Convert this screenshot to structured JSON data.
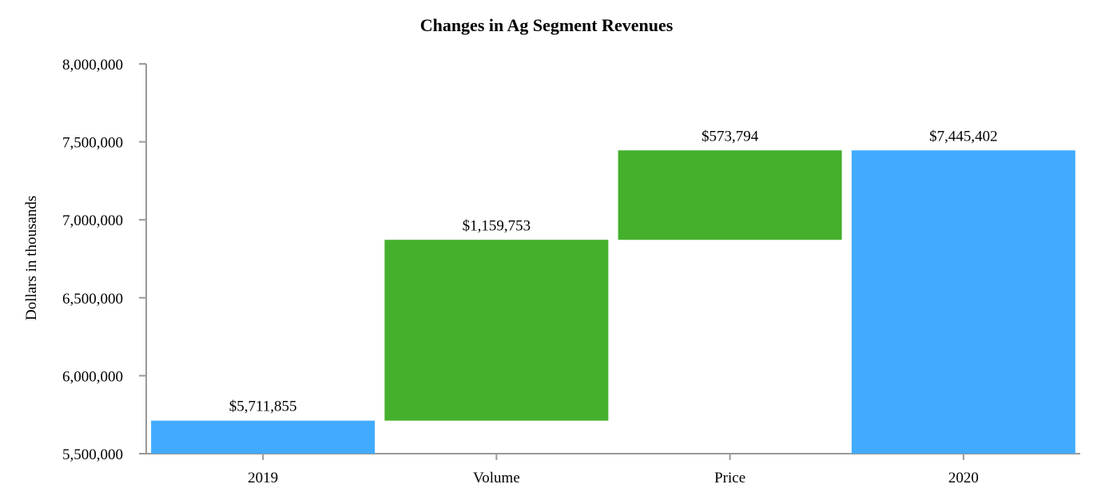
{
  "chart_data": {
    "type": "bar",
    "subtype": "waterfall",
    "title": "Changes in Ag Segment Revenues",
    "xlabel": "",
    "ylabel": "Dollars in thousands",
    "ylim": [
      5500000,
      8000000
    ],
    "yticks": [
      5500000,
      6000000,
      6500000,
      7000000,
      7500000,
      8000000
    ],
    "ytick_labels": [
      "5,500,000",
      "6,000,000",
      "6,500,000",
      "7,000,000",
      "7,500,000",
      "8,000,000"
    ],
    "categories": [
      "2019",
      "Volume",
      "Price",
      "2020"
    ],
    "values": [
      5711855,
      1159753,
      573794,
      7445402
    ],
    "bar_kind": [
      "total",
      "delta",
      "delta",
      "total"
    ],
    "data_labels": [
      "$5,711,855",
      "$1,159,753",
      "$573,794",
      "$7,445,402"
    ],
    "colors": {
      "total": "#42abff",
      "delta": "#44b02c"
    },
    "grid": false,
    "legend": "none"
  }
}
